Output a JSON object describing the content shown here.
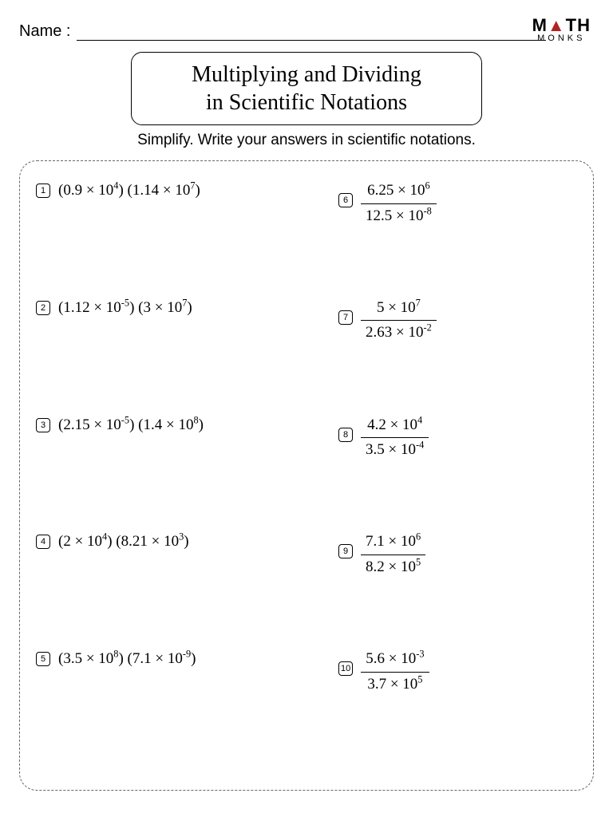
{
  "header": {
    "name_label": "Name :",
    "logo_top_left": "M",
    "logo_top_tri": "▲",
    "logo_top_right": "TH",
    "logo_bottom": "MONKS"
  },
  "title": {
    "line1": "Multiplying and Dividing",
    "line2": "in Scientific Notations"
  },
  "instruction": "Simplify. Write your answers in scientific notations.",
  "problems": {
    "left": [
      {
        "n": "1",
        "a_coef": "0.9",
        "a_exp": "4",
        "b_coef": "1.14",
        "b_exp": "7"
      },
      {
        "n": "2",
        "a_coef": "1.12",
        "a_exp": "-5",
        "b_coef": "3",
        "b_exp": "7"
      },
      {
        "n": "3",
        "a_coef": "2.15",
        "a_exp": "-5",
        "b_coef": "1.4",
        "b_exp": "8"
      },
      {
        "n": "4",
        "a_coef": "2",
        "a_exp": "4",
        "b_coef": "8.21",
        "b_exp": "3"
      },
      {
        "n": "5",
        "a_coef": "3.5",
        "a_exp": "8",
        "b_coef": "7.1",
        "b_exp": "-9"
      }
    ],
    "right": [
      {
        "n": "6",
        "top_coef": "6.25",
        "top_exp": "6",
        "bot_coef": "12.5",
        "bot_exp": "-8"
      },
      {
        "n": "7",
        "top_coef": "5",
        "top_exp": "7",
        "bot_coef": "2.63",
        "bot_exp": "-2"
      },
      {
        "n": "8",
        "top_coef": "4.2",
        "top_exp": "4",
        "bot_coef": "3.5",
        "bot_exp": "-4"
      },
      {
        "n": "9",
        "top_coef": "7.1",
        "top_exp": "6",
        "bot_coef": "8.2",
        "bot_exp": "5"
      },
      {
        "n": "10",
        "top_coef": "5.6",
        "top_exp": "-3",
        "bot_coef": "3.7",
        "bot_exp": "5"
      }
    ]
  },
  "style": {
    "page_bg": "#ffffff",
    "text_color": "#000000",
    "border_color": "#000000",
    "dashed_color": "#666666",
    "logo_accent": "#b22222",
    "body_font": "Georgia",
    "label_font": "Arial",
    "title_fontsize": 28,
    "expr_fontsize": 19,
    "instruction_fontsize": 19
  }
}
